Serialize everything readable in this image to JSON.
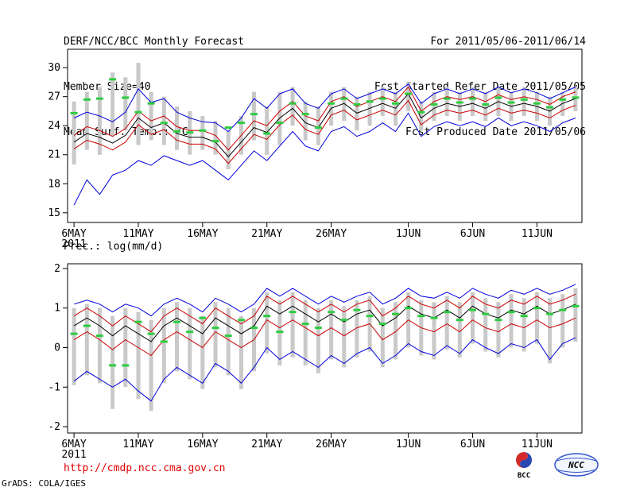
{
  "header": {
    "title": "DERF/NCC/BCC Monthly Forecast",
    "member_size": "Member Size=40",
    "var1_label": "Mean Surf. Temp.: °C",
    "for_range": "For 2011/05/06-2011/06/14",
    "refer_date": "Fcst Started Refer Date 2011/05/05",
    "produced_date": "Fcst Produced Date 2011/05/06"
  },
  "footer": {
    "url": "http://cmdp.ncc.cma.gov.cn",
    "credit": "GrADS: COLA/IGES",
    "logo1": "BCC",
    "logo2": "NCC"
  },
  "colors": {
    "envelope_blue": "#0000dd",
    "quantile_red": "#cc0000",
    "mean_black": "#000000",
    "marker_green": "#2ecc40",
    "spread_gray": "#c9c9c9",
    "url_red": "#e00000"
  },
  "chart_data": [
    {
      "type": "line",
      "name": "surface-temperature",
      "title": "Mean Surf. Temp.: °C",
      "xlabel": "",
      "ylabel": "°C",
      "n_points": 40,
      "ylim": [
        15,
        30
      ],
      "yticks": [
        15,
        18,
        21,
        24,
        27,
        30
      ],
      "xticks": [
        {
          "i": 0,
          "label": "6MAY",
          "sub": "2011"
        },
        {
          "i": 5,
          "label": "11MAY"
        },
        {
          "i": 10,
          "label": "16MAY"
        },
        {
          "i": 15,
          "label": "21MAY"
        },
        {
          "i": 20,
          "label": "26MAY"
        },
        {
          "i": 26,
          "label": "1JUN"
        },
        {
          "i": 31,
          "label": "6JUN"
        },
        {
          "i": 36,
          "label": "11JUN"
        }
      ],
      "series": [
        {
          "name": "ensemble-spread",
          "type": "bar-range",
          "color": "#c9c9c9",
          "low": [
            20.0,
            21.5,
            21.0,
            23.0,
            23.5,
            22.0,
            22.5,
            22.0,
            21.5,
            21.0,
            21.5,
            21.0,
            19.5,
            21.0,
            22.5,
            21.0,
            22.0,
            24.0,
            22.5,
            22.0,
            24.0,
            24.5,
            23.5,
            24.0,
            25.0,
            24.0,
            25.5,
            23.5,
            24.5,
            25.0,
            24.5,
            25.0,
            24.5,
            25.0,
            24.5,
            25.0,
            24.5,
            24.0,
            25.0,
            25.5
          ],
          "high": [
            26.5,
            27.5,
            28.0,
            29.5,
            29.0,
            30.5,
            27.5,
            27.0,
            26.0,
            25.5,
            25.0,
            24.5,
            23.5,
            25.0,
            27.5,
            26.0,
            27.5,
            28.0,
            26.5,
            26.0,
            27.5,
            28.0,
            27.0,
            27.5,
            28.0,
            27.5,
            28.5,
            26.5,
            27.5,
            28.0,
            27.5,
            28.0,
            27.5,
            28.0,
            27.5,
            28.0,
            27.5,
            27.0,
            27.5,
            28.0
          ]
        },
        {
          "name": "ensemble-min",
          "type": "line",
          "color": "#0000dd",
          "values": [
            15.8,
            18.4,
            16.9,
            18.9,
            19.4,
            20.4,
            19.9,
            20.9,
            20.4,
            19.9,
            20.4,
            19.4,
            18.4,
            19.9,
            21.4,
            20.4,
            21.9,
            23.4,
            21.9,
            21.4,
            23.4,
            23.9,
            22.9,
            23.4,
            24.3,
            23.4,
            25.3,
            22.9,
            23.9,
            24.4,
            24.0,
            24.4,
            23.9,
            24.8,
            24.0,
            24.4,
            24.0,
            23.4,
            24.3,
            24.8
          ]
        },
        {
          "name": "ensemble-max",
          "type": "line",
          "color": "#0000dd",
          "values": [
            24.8,
            25.4,
            25.0,
            24.4,
            25.4,
            27.8,
            26.4,
            26.8,
            25.4,
            24.8,
            24.4,
            24.3,
            23.4,
            24.8,
            26.8,
            25.8,
            27.3,
            27.8,
            26.3,
            25.8,
            27.3,
            27.8,
            26.8,
            27.3,
            27.8,
            27.3,
            28.3,
            26.3,
            27.3,
            27.8,
            27.3,
            27.8,
            27.3,
            28.0,
            27.4,
            27.8,
            27.4,
            26.8,
            27.4,
            28.0
          ]
        },
        {
          "name": "red-lower",
          "type": "line",
          "color": "#cc0000",
          "values": [
            21.6,
            22.5,
            22.1,
            21.5,
            22.3,
            24.1,
            23.1,
            23.6,
            22.5,
            22.1,
            22.1,
            21.6,
            20.1,
            21.6,
            23.1,
            22.6,
            24.1,
            25.1,
            23.6,
            23.1,
            25.1,
            25.6,
            24.6,
            25.1,
            25.6,
            25.1,
            26.6,
            24.1,
            25.1,
            25.6,
            25.3,
            25.6,
            25.1,
            25.8,
            25.3,
            25.6,
            25.3,
            24.8,
            25.6,
            26.1
          ]
        },
        {
          "name": "red-upper",
          "type": "line",
          "color": "#cc0000",
          "values": [
            23.0,
            23.9,
            23.5,
            22.9,
            23.7,
            25.5,
            24.5,
            25.0,
            23.9,
            23.5,
            23.5,
            23.0,
            21.5,
            23.0,
            24.5,
            24.0,
            25.5,
            26.5,
            25.0,
            24.5,
            26.5,
            27.0,
            26.0,
            26.5,
            27.0,
            26.5,
            28.0,
            25.5,
            26.5,
            27.0,
            26.7,
            27.0,
            26.5,
            27.2,
            26.7,
            27.0,
            26.7,
            26.2,
            27.0,
            27.5
          ]
        },
        {
          "name": "ensemble-mean",
          "type": "line",
          "color": "#000000",
          "values": [
            22.3,
            23.2,
            22.8,
            22.2,
            23.0,
            24.8,
            23.8,
            24.3,
            23.2,
            22.8,
            22.8,
            22.3,
            20.8,
            22.3,
            23.8,
            23.3,
            24.8,
            25.8,
            24.3,
            23.8,
            25.8,
            26.3,
            25.3,
            25.8,
            26.3,
            25.8,
            27.3,
            24.8,
            25.8,
            26.3,
            26.0,
            26.3,
            25.8,
            26.5,
            26.0,
            26.3,
            26.0,
            25.5,
            26.3,
            26.8
          ]
        },
        {
          "name": "green-dash-markers",
          "type": "dash",
          "color": "#2ecc40",
          "values": [
            25.3,
            26.7,
            26.8,
            28.8,
            26.9,
            25.4,
            26.3,
            24.3,
            23.4,
            23.3,
            23.5,
            22.4,
            23.8,
            24.3,
            25.2,
            23.2,
            24.3,
            26.3,
            25.2,
            23.8,
            26.3,
            26.8,
            26.2,
            26.5,
            26.8,
            26.3,
            27.3,
            25.4,
            26.2,
            26.8,
            26.4,
            26.8,
            26.2,
            26.9,
            26.4,
            26.7,
            26.3,
            25.9,
            26.7,
            26.9
          ]
        }
      ]
    },
    {
      "type": "line",
      "name": "precipitation",
      "title": "Prec.: log(mm/d)",
      "xlabel": "",
      "ylabel": "log(mm/d)",
      "n_points": 40,
      "ylim": [
        -2,
        2
      ],
      "yticks": [
        -2,
        -1,
        0,
        1,
        2
      ],
      "xticks": [
        {
          "i": 0,
          "label": "6MAY",
          "sub": "2011"
        },
        {
          "i": 5,
          "label": "11MAY"
        },
        {
          "i": 10,
          "label": "16MAY"
        },
        {
          "i": 15,
          "label": "21MAY"
        },
        {
          "i": 20,
          "label": "26MAY"
        },
        {
          "i": 26,
          "label": "1JUN"
        },
        {
          "i": 31,
          "label": "6JUN"
        },
        {
          "i": 36,
          "label": "11JUN"
        }
      ],
      "series": [
        {
          "name": "ensemble-spread",
          "type": "bar-range",
          "color": "#c9c9c9",
          "low": [
            -0.95,
            -0.7,
            -0.9,
            -1.55,
            -1.0,
            -1.3,
            -1.6,
            -0.9,
            -0.6,
            -0.8,
            -1.05,
            -0.5,
            -0.7,
            -1.05,
            -0.6,
            -0.15,
            -0.45,
            -0.25,
            -0.45,
            -0.65,
            -0.3,
            -0.5,
            -0.25,
            -0.1,
            -0.5,
            -0.3,
            0.0,
            -0.2,
            -0.3,
            -0.05,
            -0.25,
            0.1,
            -0.1,
            -0.25,
            0.0,
            -0.1,
            0.1,
            -0.4,
            0.0,
            0.15
          ],
          "high": [
            1.0,
            1.1,
            1.0,
            0.8,
            1.0,
            0.9,
            0.7,
            1.0,
            1.15,
            1.0,
            0.8,
            1.15,
            1.0,
            0.8,
            1.0,
            1.4,
            1.2,
            1.4,
            1.2,
            1.0,
            1.2,
            1.05,
            1.2,
            1.3,
            1.0,
            1.15,
            1.4,
            1.2,
            1.15,
            1.3,
            1.15,
            1.4,
            1.25,
            1.15,
            1.35,
            1.25,
            1.4,
            1.25,
            1.35,
            1.5
          ]
        },
        {
          "name": "ensemble-min",
          "type": "line",
          "color": "#0000dd",
          "values": [
            -0.85,
            -0.6,
            -0.8,
            -1.0,
            -0.8,
            -1.1,
            -1.35,
            -0.8,
            -0.5,
            -0.7,
            -0.9,
            -0.4,
            -0.6,
            -0.9,
            -0.5,
            0.0,
            -0.3,
            -0.1,
            -0.3,
            -0.5,
            -0.2,
            -0.4,
            -0.15,
            0.0,
            -0.4,
            -0.2,
            0.1,
            -0.1,
            -0.2,
            0.05,
            -0.15,
            0.2,
            0.0,
            -0.15,
            0.1,
            0.0,
            0.2,
            -0.3,
            0.1,
            0.25
          ]
        },
        {
          "name": "ensemble-max",
          "type": "line",
          "color": "#0000dd",
          "values": [
            1.1,
            1.2,
            1.1,
            0.9,
            1.1,
            1.0,
            0.8,
            1.1,
            1.25,
            1.1,
            0.9,
            1.25,
            1.1,
            0.9,
            1.1,
            1.5,
            1.3,
            1.5,
            1.3,
            1.1,
            1.3,
            1.15,
            1.3,
            1.4,
            1.1,
            1.25,
            1.5,
            1.3,
            1.25,
            1.4,
            1.25,
            1.5,
            1.35,
            1.25,
            1.45,
            1.35,
            1.5,
            1.35,
            1.45,
            1.6
          ]
        },
        {
          "name": "red-lower",
          "type": "line",
          "color": "#cc0000",
          "values": [
            0.2,
            0.4,
            0.2,
            -0.05,
            0.2,
            0.0,
            -0.2,
            0.2,
            0.4,
            0.2,
            0.0,
            0.4,
            0.2,
            0.0,
            0.2,
            0.7,
            0.5,
            0.7,
            0.5,
            0.3,
            0.5,
            0.3,
            0.5,
            0.6,
            0.2,
            0.4,
            0.7,
            0.5,
            0.4,
            0.6,
            0.4,
            0.7,
            0.5,
            0.4,
            0.6,
            0.5,
            0.7,
            0.5,
            0.6,
            0.75
          ]
        },
        {
          "name": "red-upper",
          "type": "line",
          "color": "#cc0000",
          "values": [
            0.8,
            1.0,
            0.8,
            0.55,
            0.8,
            0.6,
            0.4,
            0.8,
            1.0,
            0.8,
            0.6,
            1.0,
            0.8,
            0.6,
            0.8,
            1.3,
            1.1,
            1.3,
            1.1,
            0.9,
            1.1,
            0.9,
            1.1,
            1.2,
            0.8,
            1.0,
            1.3,
            1.1,
            1.0,
            1.2,
            1.0,
            1.3,
            1.1,
            1.0,
            1.2,
            1.1,
            1.3,
            1.1,
            1.2,
            1.35
          ]
        },
        {
          "name": "ensemble-mean",
          "type": "line",
          "color": "#000000",
          "values": [
            0.55,
            0.75,
            0.55,
            0.3,
            0.55,
            0.35,
            0.15,
            0.55,
            0.75,
            0.55,
            0.35,
            0.75,
            0.55,
            0.35,
            0.55,
            1.05,
            0.85,
            1.05,
            0.85,
            0.65,
            0.85,
            0.65,
            0.85,
            0.95,
            0.55,
            0.75,
            1.05,
            0.85,
            0.75,
            0.95,
            0.75,
            1.05,
            0.85,
            0.75,
            0.95,
            0.85,
            1.05,
            0.85,
            0.95,
            1.1
          ]
        },
        {
          "name": "green-dash-markers",
          "type": "dash",
          "color": "#2ecc40",
          "values": [
            0.35,
            0.55,
            0.3,
            -0.45,
            -0.45,
            0.65,
            0.35,
            0.15,
            0.65,
            0.4,
            0.75,
            0.5,
            0.3,
            0.7,
            0.5,
            0.8,
            0.4,
            0.9,
            0.6,
            0.5,
            0.9,
            0.7,
            0.95,
            0.8,
            0.6,
            0.85,
            1.0,
            0.8,
            0.75,
            0.9,
            0.7,
            0.95,
            0.85,
            0.7,
            0.9,
            0.8,
            1.0,
            0.85,
            0.95,
            1.05
          ]
        }
      ]
    }
  ]
}
